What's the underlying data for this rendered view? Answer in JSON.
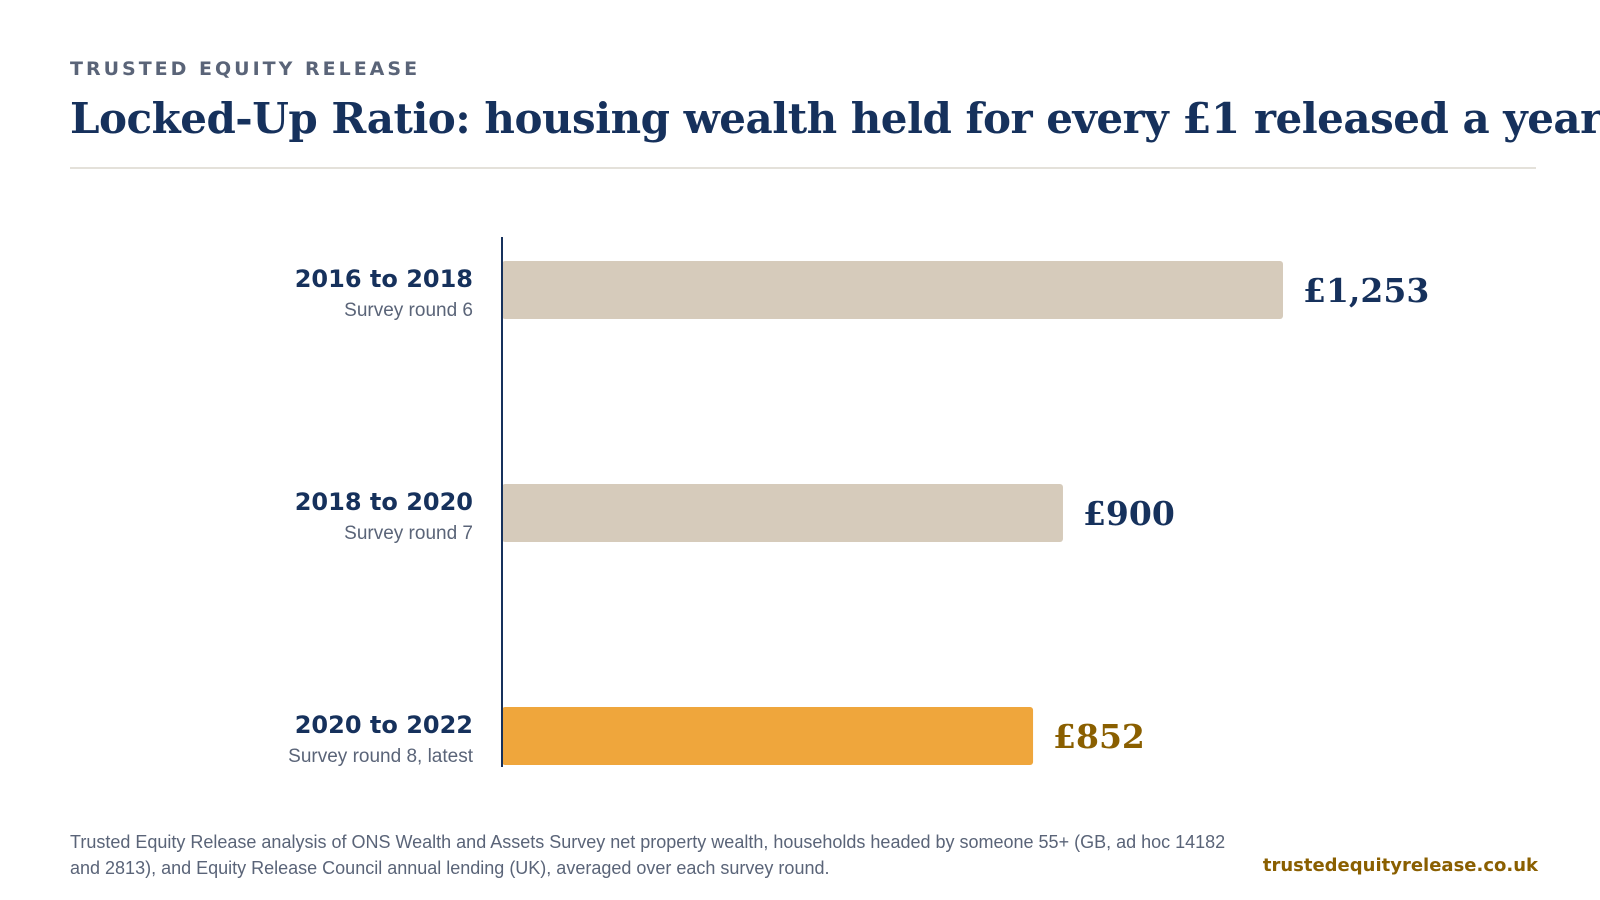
{
  "header": {
    "eyebrow": "TRUSTED EQUITY RELEASE",
    "title": "Locked-Up Ratio: housing wealth held for every £1 released a year"
  },
  "chart_data": {
    "type": "bar",
    "orientation": "horizontal",
    "categories": [
      "2016 to 2018",
      "2018 to 2020",
      "2020 to 2022"
    ],
    "category_subtitles": [
      "Survey round 6",
      "Survey round 7",
      "Survey round 8, latest"
    ],
    "values": [
      1253,
      900,
      852
    ],
    "value_labels": [
      "£1,253",
      "£900",
      "£852"
    ],
    "highlighted_index": 2,
    "xlim": [
      0,
      1253
    ],
    "grid": false,
    "legend": "none",
    "title": "Locked-Up Ratio: housing wealth held for every £1 released a year",
    "xlabel": "",
    "ylabel": ""
  },
  "colors": {
    "bar_default": "#d6cbbb",
    "bar_highlight": "#efa63c",
    "label_default": "#16315c",
    "label_highlight": "#8a5f00",
    "axis": "#16315c"
  },
  "footer": {
    "note": "Trusted Equity Release analysis of ONS Wealth and Assets Survey net property wealth, households headed by someone 55+ (GB, ad hoc 14182 and 2813), and Equity Release Council annual lending (UK), averaged over each survey round.",
    "site": "trustedequityrelease.co.uk"
  }
}
